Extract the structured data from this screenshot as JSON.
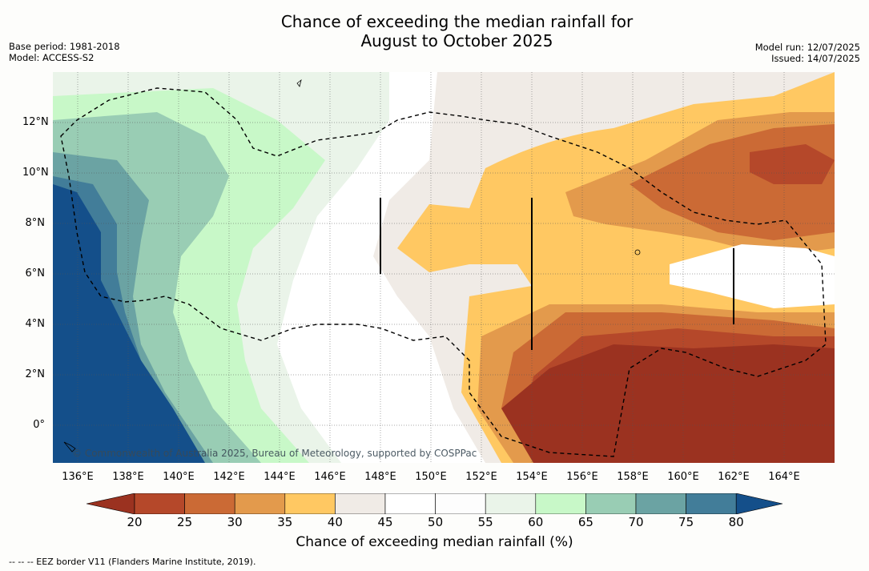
{
  "title_line1": "Chance of exceeding the median rainfall for",
  "title_line2": "August to October 2025",
  "base_period": "Base period: 1981-2018",
  "model": "Model: ACCESS-S2",
  "model_run": "Model run: 12/07/2025",
  "issued": "Issued: 14/07/2025",
  "copyright": "© Commonwealth of Australia 2025, Bureau of Meteorology, supported by COSPPac",
  "lon_labels": [
    "136°E",
    "138°E",
    "140°E",
    "142°E",
    "144°E",
    "146°E",
    "148°E",
    "150°E",
    "152°E",
    "154°E",
    "156°E",
    "158°E",
    "160°E",
    "162°E",
    "164°E"
  ],
  "lat_labels": [
    "12°N",
    "10°N",
    "8°N",
    "6°N",
    "4°N",
    "2°N",
    "0°"
  ],
  "colorbar": {
    "title": "Chance of exceeding median rainfall (%)",
    "ticks": [
      "20",
      "25",
      "30",
      "35",
      "40",
      "45",
      "50",
      "55",
      "60",
      "65",
      "70",
      "75",
      "80"
    ],
    "colors": [
      "#9b3220",
      "#b5482a",
      "#cb6a35",
      "#e39a4c",
      "#ffc862",
      "#f0ebe6",
      "#ffffff",
      "#fdfdfd",
      "#eaf4e9",
      "#c8f8c8",
      "#99cdb4",
      "#6ba3a3",
      "#427d99",
      "#144f8a"
    ]
  },
  "footnote": "--  --  -- EEZ border V11 (Flanders Marine Institute, 2019)."
}
